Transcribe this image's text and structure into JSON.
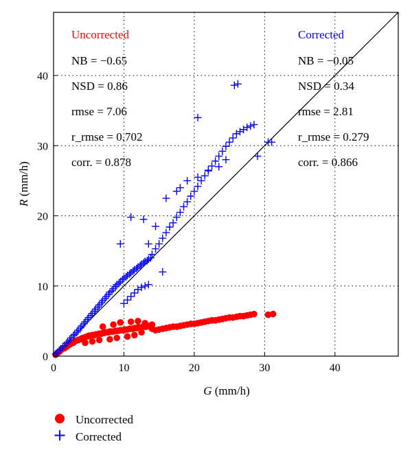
{
  "chart_data": {
    "type": "scatter",
    "xlabel_var": "G",
    "xlabel_unit": " (mm/h)",
    "ylabel_var": "R",
    "ylabel_unit": " (mm/h)",
    "xlim": [
      0,
      49
    ],
    "ylim": [
      0,
      49
    ],
    "x_ticks": [
      "0",
      "10",
      "20",
      "30",
      "40"
    ],
    "y_ticks": [
      "0",
      "10",
      "20",
      "30",
      "40"
    ],
    "grid": true,
    "reference_line": "1:1",
    "legend_position": "bottom-left",
    "series": [
      {
        "name": "Uncorrected",
        "marker": "filled-circle",
        "color": "#ff0000",
        "stats": [
          "NB = −0.65",
          "NSD = 0.86",
          "rmse = 7.06",
          "r_rmse = 0.702",
          "corr. = 0.878"
        ],
        "x": [
          0.3,
          0.5,
          0.8,
          1.0,
          1.2,
          1.5,
          1.8,
          2.0,
          2.2,
          2.5,
          2.8,
          3.0,
          3.2,
          3.5,
          3.8,
          4.0,
          4.2,
          4.5,
          4.8,
          5.0,
          5.2,
          5.5,
          5.8,
          6.0,
          6.2,
          6.5,
          6.8,
          7.0,
          7.2,
          7.5,
          7.8,
          8.0,
          8.2,
          8.5,
          8.8,
          9.0,
          9.2,
          9.5,
          9.8,
          10.0,
          10.2,
          10.5,
          10.8,
          11.0,
          11.2,
          11.5,
          11.8,
          12.0,
          12.2,
          12.5,
          12.8,
          13.0,
          13.2,
          13.5,
          13.8,
          14.0,
          14.5,
          15.0,
          15.5,
          16.0,
          16.5,
          17.0,
          17.5,
          18.0,
          18.5,
          19.0,
          19.5,
          20.0,
          20.5,
          21.0,
          21.5,
          22.0,
          22.5,
          23.0,
          23.5,
          24.0,
          24.5,
          25.0,
          25.5,
          26.0,
          26.5,
          27.0,
          27.5,
          28.0,
          28.5,
          30.5,
          31.2,
          7.0,
          8.5,
          9.5,
          11.0,
          12.0,
          13.0,
          14.0,
          12.5,
          11.5,
          10.5,
          9.0,
          8.0,
          6.5,
          5.5,
          4.5
        ],
        "y": [
          0.2,
          0.4,
          0.6,
          0.8,
          1.0,
          1.1,
          1.3,
          1.5,
          1.6,
          1.8,
          1.9,
          2.1,
          2.2,
          2.3,
          2.4,
          2.5,
          2.6,
          2.7,
          2.8,
          2.9,
          2.9,
          3.0,
          3.0,
          3.1,
          3.1,
          3.2,
          3.2,
          3.3,
          3.3,
          3.4,
          3.4,
          3.5,
          3.5,
          3.5,
          3.6,
          3.6,
          3.6,
          3.7,
          3.7,
          3.7,
          3.8,
          3.8,
          3.9,
          3.9,
          3.9,
          4.0,
          4.0,
          4.1,
          4.1,
          4.1,
          4.2,
          4.2,
          4.2,
          4.3,
          4.3,
          3.9,
          3.7,
          3.8,
          3.9,
          4.0,
          4.1,
          4.2,
          4.2,
          4.3,
          4.4,
          4.5,
          4.6,
          4.6,
          4.7,
          4.8,
          4.9,
          5.0,
          5.1,
          5.1,
          5.2,
          5.3,
          5.4,
          5.5,
          5.5,
          5.6,
          5.7,
          5.7,
          5.8,
          5.9,
          6.0,
          5.9,
          6.0,
          4.2,
          4.5,
          4.8,
          4.9,
          5.0,
          4.7,
          4.5,
          3.4,
          3.0,
          2.8,
          2.6,
          2.4,
          2.3,
          2.1,
          1.9
        ]
      },
      {
        "name": "Corrected",
        "marker": "plus",
        "color": "#0000ff",
        "stats": [
          "NB = −0.05",
          "NSD = 0.34",
          "rmse = 2.81",
          "r_rmse = 0.279",
          "corr. = 0.866"
        ],
        "x": [
          0.3,
          0.5,
          0.8,
          1.0,
          1.3,
          1.5,
          1.8,
          2.0,
          2.3,
          2.5,
          2.8,
          3.0,
          3.3,
          3.5,
          3.8,
          4.0,
          4.3,
          4.5,
          4.8,
          5.0,
          5.3,
          5.5,
          5.8,
          6.0,
          6.3,
          6.5,
          6.8,
          7.0,
          7.3,
          7.5,
          7.8,
          8.0,
          8.3,
          8.5,
          8.8,
          9.0,
          9.3,
          9.5,
          9.8,
          10.0,
          10.3,
          10.5,
          10.8,
          11.0,
          11.3,
          11.5,
          11.8,
          12.0,
          12.3,
          12.5,
          12.8,
          13.0,
          13.3,
          13.5,
          13.8,
          10.0,
          10.5,
          11.0,
          11.5,
          12.0,
          12.5,
          13.0,
          13.5,
          14.0,
          14.5,
          15.0,
          15.5,
          16.0,
          16.5,
          17.0,
          17.5,
          18.0,
          18.5,
          19.0,
          19.5,
          20.0,
          20.5,
          21.0,
          21.5,
          22.0,
          22.5,
          23.0,
          23.5,
          24.0,
          24.5,
          25.0,
          25.5,
          26.0,
          26.5,
          27.0,
          27.5,
          28.0,
          28.5,
          29.0,
          31.0,
          30.5,
          25.7,
          26.2,
          20.5,
          12.8,
          11.0,
          9.5,
          13.5,
          14.5,
          16.0,
          17.5,
          18.0,
          19.0,
          20.5,
          22.0,
          23.5,
          24.5,
          15.5
        ],
        "y": [
          0.3,
          0.5,
          0.8,
          1.0,
          1.3,
          1.5,
          1.8,
          2.0,
          2.3,
          2.6,
          2.9,
          3.1,
          3.4,
          3.7,
          4.0,
          4.3,
          4.6,
          4.9,
          5.2,
          5.5,
          5.8,
          6.1,
          6.4,
          6.7,
          7.0,
          7.3,
          7.6,
          7.9,
          8.2,
          8.5,
          8.8,
          9.1,
          9.3,
          9.6,
          9.9,
          10.2,
          10.4,
          10.6,
          10.9,
          11.1,
          11.3,
          11.5,
          11.7,
          11.9,
          12.1,
          12.3,
          12.5,
          12.7,
          12.9,
          13.1,
          13.3,
          13.5,
          13.6,
          13.8,
          14.0,
          7.5,
          8.0,
          8.5,
          9.0,
          9.5,
          9.8,
          10.0,
          10.2,
          14.5,
          15.3,
          16.0,
          16.8,
          17.6,
          18.4,
          19.0,
          19.8,
          20.5,
          21.3,
          22.0,
          22.8,
          23.5,
          24.2,
          25.0,
          25.7,
          26.4,
          27.1,
          27.8,
          28.5,
          29.2,
          29.9,
          30.5,
          31.1,
          31.7,
          32.0,
          32.3,
          32.6,
          32.8,
          33.0,
          28.5,
          30.5,
          30.5,
          38.6,
          38.8,
          34.0,
          19.5,
          19.8,
          16.0,
          16.0,
          18.5,
          22.5,
          23.5,
          24.0,
          25.0,
          25.5,
          26.5,
          27.0,
          28.0,
          12.0
        ]
      }
    ]
  }
}
